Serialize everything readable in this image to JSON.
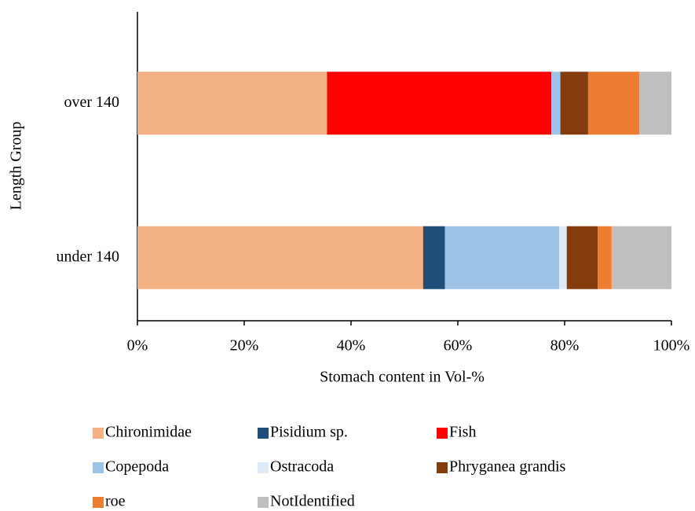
{
  "chart_data": {
    "type": "stacked_bar_horizontal",
    "x_label": "Stomach content in Vol-%",
    "y_label": "Length Group",
    "categories": [
      "over 140",
      "under 140"
    ],
    "series": [
      {
        "name": "Chironimidae",
        "color": "#f4b183",
        "values": [
          35.5,
          53.5
        ]
      },
      {
        "name": "Pisidium sp.",
        "color": "#1f4e79",
        "values": [
          0,
          4.1
        ]
      },
      {
        "name": "Fish",
        "color": "#ff0000",
        "values": [
          42,
          0
        ]
      },
      {
        "name": "Copepoda",
        "color": "#9dc3e6",
        "values": [
          1.7,
          21.4
        ]
      },
      {
        "name": "Ostracoda",
        "color": "#deebf7",
        "values": [
          0,
          1.4
        ]
      },
      {
        "name": "Phryganea grandis",
        "color": "#843c0c",
        "values": [
          5.2,
          5.8
        ]
      },
      {
        "name": "roe",
        "color": "#ed7d31",
        "values": [
          9.6,
          2.6
        ]
      },
      {
        "name": "NotIdentified",
        "color": "#bfbfbf",
        "values": [
          6,
          11.2
        ]
      }
    ],
    "xlim": [
      0,
      100
    ],
    "xticks": [
      {
        "value": 0,
        "label": "0%"
      },
      {
        "value": 20,
        "label": "20%"
      },
      {
        "value": 40,
        "label": "40%"
      },
      {
        "value": 60,
        "label": "60%"
      },
      {
        "value": 80,
        "label": "80%"
      },
      {
        "value": 100,
        "label": "100%"
      }
    ],
    "legend": "bottom"
  }
}
